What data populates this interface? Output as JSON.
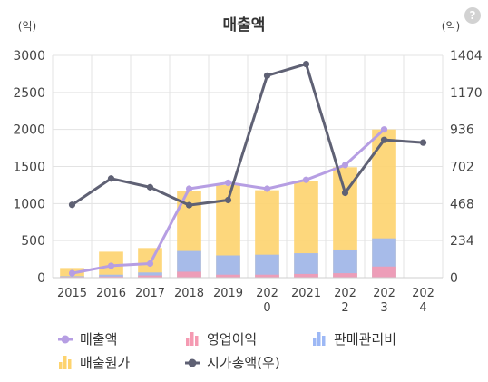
{
  "chart_data": {
    "type": "bar",
    "title": "매출액",
    "left_unit": "(억)",
    "right_unit": "(억)",
    "categories": [
      "2015",
      "2016",
      "2017",
      "2018",
      "2019",
      "2020",
      "2021",
      "2022",
      "2023",
      "2024"
    ],
    "y_left": {
      "ylim": [
        0,
        3000
      ],
      "ticks": [
        0,
        500,
        1000,
        1500,
        2000,
        2500,
        3000
      ],
      "tick_labels": [
        "0",
        "500",
        "1000",
        "1500",
        "2000",
        "2500",
        "3000"
      ]
    },
    "y_right": {
      "ylim": [
        0,
        1404
      ],
      "ticks": [
        0,
        234,
        468,
        702,
        936,
        1170,
        1404
      ],
      "tick_labels": [
        "0",
        "234",
        "468",
        "702",
        "936",
        "1170",
        "1404"
      ]
    },
    "series": [
      {
        "name": "매출액",
        "type": "line",
        "axis": "left",
        "color": "#b69ee3",
        "values": [
          60,
          160,
          190,
          1200,
          1280,
          1200,
          1320,
          1520,
          2000,
          null
        ]
      },
      {
        "name": "영업이익",
        "type": "bar",
        "axis": "left",
        "color": "#f59ab2",
        "values": [
          10,
          15,
          30,
          80,
          40,
          40,
          50,
          60,
          150,
          null
        ]
      },
      {
        "name": "판매관리비",
        "type": "bar",
        "axis": "left",
        "color": "#9db8f5",
        "values": [
          20,
          40,
          70,
          360,
          300,
          310,
          330,
          380,
          530,
          null
        ]
      },
      {
        "name": "매출원가",
        "type": "bar",
        "axis": "left",
        "color": "#fdd36e",
        "values": [
          130,
          350,
          400,
          1170,
          1250,
          1180,
          1300,
          1490,
          2000,
          null
        ]
      },
      {
        "name": "시가총액(우)",
        "type": "line",
        "axis": "right",
        "color": "#5f6174",
        "values": [
          460,
          626,
          571,
          458,
          490,
          1276,
          1349,
          536,
          870,
          853
        ]
      }
    ],
    "grid": true,
    "legend": "bottom"
  },
  "help_icon": "question-icon",
  "help_label": "?"
}
